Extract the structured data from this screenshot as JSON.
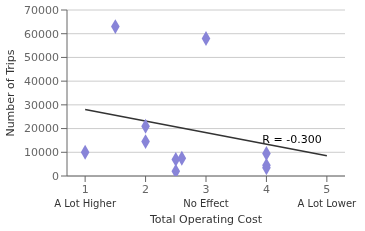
{
  "chart_data": {
    "type": "scatter",
    "xlabel": "Total Operating Cost",
    "ylabel": "Number of Trips",
    "x": [
      1,
      1.5,
      2,
      2,
      2.5,
      2.5,
      2.6,
      3,
      4,
      4,
      4
    ],
    "values": [
      10000,
      63000,
      21000,
      14500,
      7000,
      2000,
      7500,
      58000,
      9500,
      3500,
      4500
    ],
    "color": "#8884d8",
    "marker": "diamond",
    "trendline": {
      "x": [
        1,
        5
      ],
      "values": [
        28000,
        8500
      ],
      "color": "#333333"
    },
    "annotations": [
      {
        "text": "R = -0.300",
        "x": 3.85,
        "y": 15500
      }
    ],
    "x_sublabels": [
      {
        "value": 1,
        "label": "A Lot Higher"
      },
      {
        "value": 3,
        "label": "No Effect"
      },
      {
        "value": 5,
        "label": "A Lot Lower"
      }
    ],
    "xlim": [
      0.7,
      5.3
    ],
    "ylim": [
      0,
      70000
    ],
    "xticks": [
      1,
      2,
      3,
      4,
      5
    ],
    "yticks": [
      0,
      10000,
      20000,
      30000,
      40000,
      50000,
      60000,
      70000
    ],
    "grid": "y"
  }
}
